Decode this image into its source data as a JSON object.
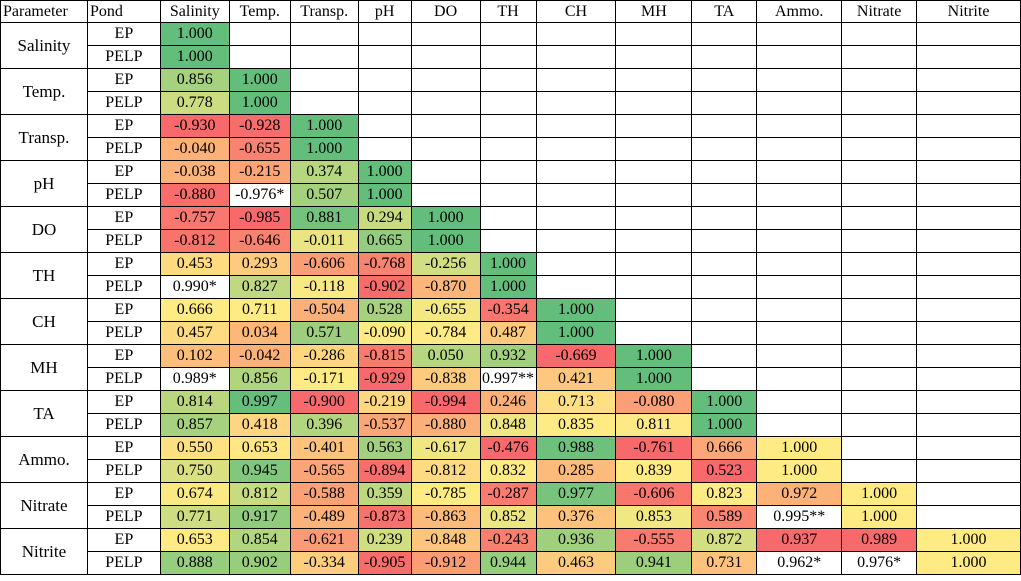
{
  "table": {
    "header": [
      "Parameter",
      "Pond",
      "Salinity",
      "Temp.",
      "Transp.",
      "pH",
      "DO",
      "TH",
      "CH",
      "MH",
      "TA",
      "Ammo.",
      "Nitrate",
      "Nitrite"
    ],
    "rows": [
      {
        "parameter": "Salinity",
        "ponds": [
          {
            "pond": "EP",
            "values": [
              "1.000"
            ]
          },
          {
            "pond": "PELP",
            "values": [
              "1.000"
            ]
          }
        ]
      },
      {
        "parameter": "Temp.",
        "ponds": [
          {
            "pond": "EP",
            "values": [
              "0.856",
              "1.000"
            ]
          },
          {
            "pond": "PELP",
            "values": [
              "0.778",
              "1.000"
            ]
          }
        ]
      },
      {
        "parameter": "Transp.",
        "ponds": [
          {
            "pond": "EP",
            "values": [
              "-0.930",
              "-0.928",
              "1.000"
            ]
          },
          {
            "pond": "PELP",
            "values": [
              "-0.040",
              "-0.655",
              "1.000"
            ]
          }
        ]
      },
      {
        "parameter": "pH",
        "ponds": [
          {
            "pond": "EP",
            "values": [
              "-0.038",
              "-0.215",
              "0.374",
              "1.000"
            ]
          },
          {
            "pond": "PELP",
            "values": [
              "-0.880",
              "-0.976*",
              "0.507",
              "1.000"
            ]
          }
        ]
      },
      {
        "parameter": "DO",
        "ponds": [
          {
            "pond": "EP",
            "values": [
              "-0.757",
              "-0.985",
              "0.881",
              "0.294",
              "1.000"
            ]
          },
          {
            "pond": "PELP",
            "values": [
              "-0.812",
              "-0.646",
              "-0.011",
              "0.665",
              "1.000"
            ]
          }
        ]
      },
      {
        "parameter": "TH",
        "ponds": [
          {
            "pond": "EP",
            "values": [
              "0.453",
              "0.293",
              "-0.606",
              "-0.768",
              "-0.256",
              "1.000"
            ]
          },
          {
            "pond": "PELP",
            "values": [
              "0.990*",
              "0.827",
              "-0.118",
              "-0.902",
              "-0.870",
              "1.000"
            ]
          }
        ]
      },
      {
        "parameter": "CH",
        "ponds": [
          {
            "pond": "EP",
            "values": [
              "0.666",
              "0.711",
              "-0.504",
              "0.528",
              "-0.655",
              "-0.354",
              "1.000"
            ]
          },
          {
            "pond": "PELP",
            "values": [
              "0.457",
              "0.034",
              "0.571",
              "-0.090",
              "-0.784",
              "0.487",
              "1.000"
            ]
          }
        ]
      },
      {
        "parameter": "MH",
        "ponds": [
          {
            "pond": "EP",
            "values": [
              "0.102",
              "-0.042",
              "-0.286",
              "-0.815",
              "0.050",
              "0.932",
              "-0.669",
              "1.000"
            ]
          },
          {
            "pond": "PELP",
            "values": [
              "0.989*",
              "0.856",
              "-0.171",
              "-0.929",
              "-0.838",
              "0.997**",
              "0.421",
              "1.000"
            ]
          }
        ]
      },
      {
        "parameter": "TA",
        "ponds": [
          {
            "pond": "EP",
            "values": [
              "0.814",
              "0.997",
              "-0.900",
              "-0.219",
              "-0.994",
              "0.246",
              "0.713",
              "-0.080",
              "1.000"
            ]
          },
          {
            "pond": "PELP",
            "values": [
              "0.857",
              "0.418",
              "0.396",
              "-0.537",
              "-0.880",
              "0.848",
              "0.835",
              "0.811",
              "1.000"
            ]
          }
        ]
      },
      {
        "parameter": "Ammo.",
        "ponds": [
          {
            "pond": "EP",
            "values": [
              "0.550",
              "0.653",
              "-0.401",
              "0.563",
              "-0.617",
              "-0.476",
              "0.988",
              "-0.761",
              "0.666",
              "1.000"
            ]
          },
          {
            "pond": "PELP",
            "values": [
              "0.750",
              "0.945",
              "-0.565",
              "-0.894",
              "-0.812",
              "0.832",
              "0.285",
              "0.839",
              "0.523",
              "1.000"
            ]
          }
        ]
      },
      {
        "parameter": "Nitrate",
        "ponds": [
          {
            "pond": "EP",
            "values": [
              "0.674",
              "0.812",
              "-0.588",
              "0.359",
              "-0.785",
              "-0.287",
              "0.977",
              "-0.606",
              "0.823",
              "0.972",
              "1.000"
            ]
          },
          {
            "pond": "PELP",
            "values": [
              "0.771",
              "0.917",
              "-0.489",
              "-0.873",
              "-0.863",
              "0.852",
              "0.376",
              "0.853",
              "0.589",
              "0.995**",
              "1.000"
            ]
          }
        ]
      },
      {
        "parameter": "Nitrite",
        "ponds": [
          {
            "pond": "EP",
            "values": [
              "0.653",
              "0.854",
              "-0.621",
              "0.239",
              "-0.848",
              "-0.243",
              "0.936",
              "-0.555",
              "0.872",
              "0.937",
              "0.989",
              "1.000"
            ]
          },
          {
            "pond": "PELP",
            "values": [
              "0.888",
              "0.902",
              "-0.334",
              "-0.905",
              "-0.912",
              "0.944",
              "0.463",
              "0.941",
              "0.731",
              "0.962*",
              "0.976*",
              "1.000"
            ]
          }
        ]
      }
    ]
  }
}
